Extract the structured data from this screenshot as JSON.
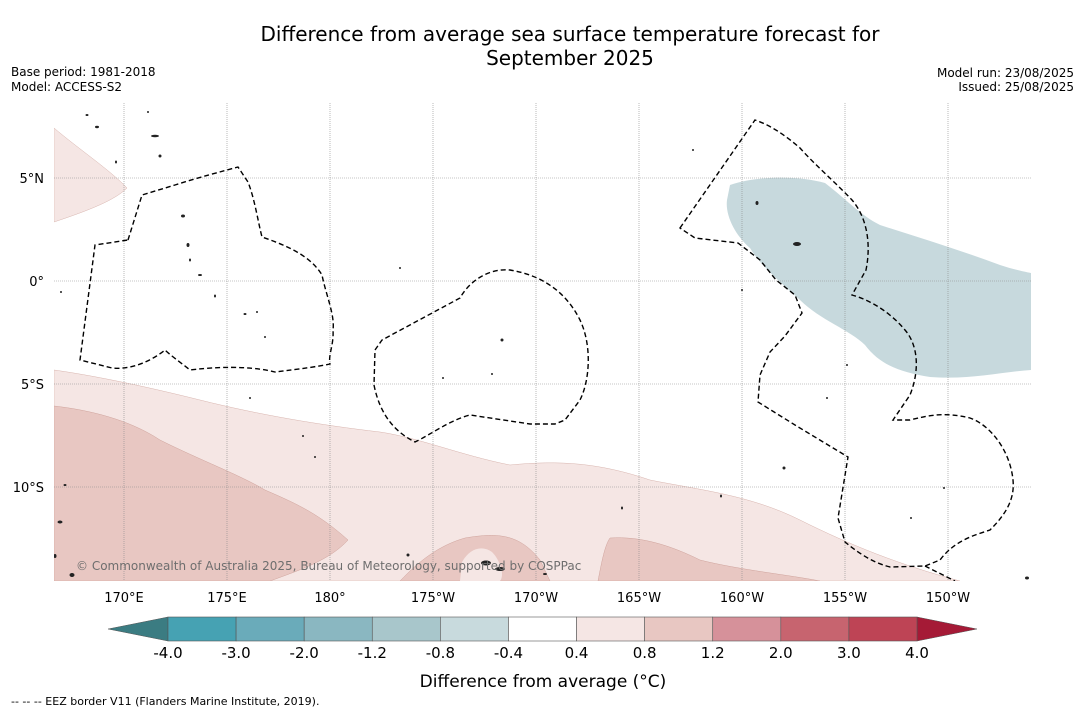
{
  "title_line1": "Difference from average sea surface temperature forecast for",
  "title_line2": "September 2025",
  "base_period": "Base period: 1981-2018",
  "model": "Model: ACCESS-S2",
  "model_run": "Model run: 23/08/2025",
  "issued": "Issued: 25/08/2025",
  "copyright": "© Commonwealth of Australia 2025, Bureau of Meteorology, supported by COSPPac",
  "footer_note": "--  --  -- EEZ border V11 (Flanders Marine Institute, 2019).",
  "lat_labels": [
    {
      "label": "5°N",
      "lat": 5
    },
    {
      "label": "0°",
      "lat": 0
    },
    {
      "label": "5°S",
      "lat": -5
    },
    {
      "label": "10°S",
      "lat": -10
    }
  ],
  "lon_labels": [
    {
      "label": "170°E",
      "lon": 170
    },
    {
      "label": "175°E",
      "lon": 175
    },
    {
      "label": "180°",
      "lon": 180
    },
    {
      "label": "175°W",
      "lon": 185
    },
    {
      "label": "170°W",
      "lon": 190
    },
    {
      "label": "165°W",
      "lon": 195
    },
    {
      "label": "160°W",
      "lon": 200
    },
    {
      "label": "155°W",
      "lon": 205
    },
    {
      "label": "150°W",
      "lon": 210
    }
  ],
  "colorbar": {
    "title": "Difference from average (°C)",
    "ticks": [
      "-4.0",
      "-3.0",
      "-2.0",
      "-1.2",
      "-0.8",
      "-0.4",
      "0.4",
      "0.8",
      "1.2",
      "2.0",
      "3.0",
      "4.0"
    ],
    "under_color": "#3b7c82",
    "over_color": "#a51a36",
    "colors": [
      "#46a2b3",
      "#6aabba",
      "#8ab7c1",
      "#a8c6cb",
      "#c8dadd",
      "#ffffff",
      "#f5e6e4",
      "#e8c7c2",
      "#d6919a",
      "#c7646f",
      "#be4455"
    ]
  },
  "map_colors": {
    "warm_light": "#f5e6e4",
    "warm_mid": "#e8c7c2",
    "cool_light": "#c7d9dd"
  }
}
